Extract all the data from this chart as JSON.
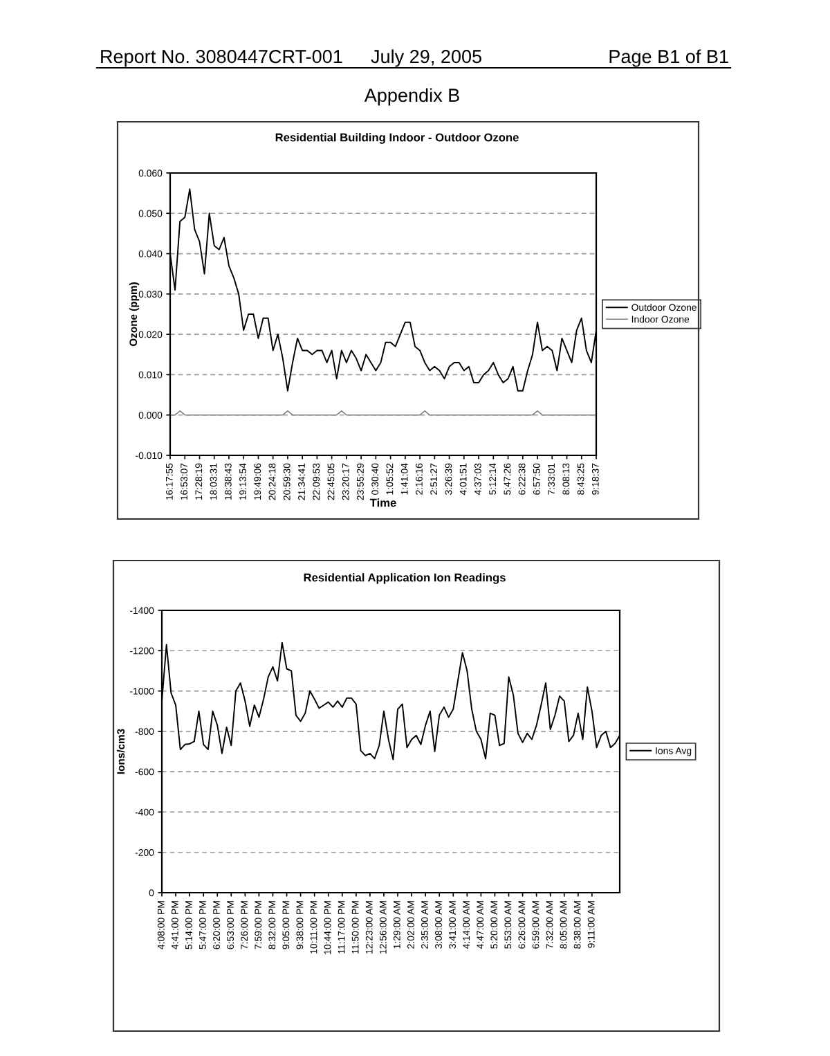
{
  "chart_data": [
    {
      "type": "line",
      "title": "Residential Building Indoor - Outdoor Ozone",
      "xlabel": "Time",
      "ylabel": "Ozone (ppm)",
      "annotations": [
        "Report No. 3080447CRT-001",
        "July 29, 2005",
        "Page B1 of B1",
        "Appendix B"
      ],
      "ylim": [
        -0.01,
        0.06
      ],
      "yticks": [
        {
          "value": 0.06,
          "label": "0.060"
        },
        {
          "value": 0.05,
          "label": "0.050"
        },
        {
          "value": 0.04,
          "label": "0.040"
        },
        {
          "value": 0.03,
          "label": "0.030"
        },
        {
          "value": 0.02,
          "label": "0.020"
        },
        {
          "value": 0.01,
          "label": "0.010"
        },
        {
          "value": 0,
          "label": "0.000"
        },
        {
          "value": -0.01,
          "label": "-0.010"
        }
      ],
      "categories": [
        "16:17:55",
        null,
        null,
        "16:53:07",
        null,
        null,
        "17:28:19",
        null,
        null,
        "18:03:31",
        null,
        null,
        "18:38:43",
        null,
        null,
        "19:13:54",
        null,
        null,
        "19:49:06",
        null,
        null,
        "20:24:18",
        null,
        null,
        "20:59:30",
        null,
        null,
        "21:34:41",
        null,
        null,
        "22:09:53",
        null,
        null,
        "22:45:05",
        null,
        null,
        "23:20:17",
        null,
        null,
        "23:55:29",
        null,
        null,
        "0:30:40",
        null,
        null,
        "1:05:52",
        null,
        null,
        "1:41:04",
        null,
        null,
        "2:16:16",
        null,
        null,
        "2:51:27",
        null,
        null,
        "3:26:39",
        null,
        null,
        "4:01:51",
        null,
        null,
        "4:37:03",
        null,
        null,
        "5:12:14",
        null,
        null,
        "5:47:26",
        null,
        null,
        "6:22:38",
        null,
        null,
        "6:57:50",
        null,
        null,
        "7:33:01",
        null,
        null,
        "8:08:13",
        null,
        null,
        "8:43:25",
        null,
        null,
        "9:18:37"
      ],
      "grid": "y",
      "legend": "right",
      "series": [
        {
          "name": "Outdoor Ozone",
          "color": "#000000",
          "values": [
            0.04,
            0.031,
            0.048,
            0.049,
            0.056,
            0.046,
            0.043,
            0.035,
            0.05,
            0.042,
            0.041,
            0.044,
            0.037,
            0.034,
            0.03,
            0.021,
            0.025,
            0.025,
            0.019,
            0.024,
            0.024,
            0.016,
            0.02,
            0.014,
            0.006,
            0.013,
            0.019,
            0.016,
            0.016,
            0.015,
            0.016,
            0.016,
            0.013,
            0.016,
            0.009,
            0.016,
            0.013,
            0.016,
            0.014,
            0.011,
            0.015,
            0.013,
            0.011,
            0.013,
            0.018,
            0.018,
            0.017,
            0.02,
            0.023,
            0.023,
            0.017,
            0.016,
            0.013,
            0.011,
            0.012,
            0.011,
            0.009,
            0.012,
            0.013,
            0.013,
            0.011,
            0.012,
            0.008,
            0.008,
            0.01,
            0.011,
            0.013,
            0.01,
            0.008,
            0.009,
            0.012,
            0.006,
            0.006,
            0.011,
            0.015,
            0.023,
            0.016,
            0.017,
            0.016,
            0.011,
            0.019,
            0.016,
            0.013,
            0.021,
            0.024,
            0.016,
            0.013,
            0.021
          ]
        },
        {
          "name": "Indoor Ozone",
          "color": "#808080",
          "values": [
            0,
            0,
            0.001,
            0,
            0,
            0,
            0,
            0,
            0,
            0,
            0,
            0,
            0,
            0,
            0,
            0,
            0,
            0,
            0,
            0,
            0,
            0,
            0,
            0,
            0.001,
            0,
            0,
            0,
            0,
            0,
            0,
            0,
            0,
            0,
            0,
            0.001,
            0,
            0,
            0,
            0,
            0,
            0,
            0,
            0,
            0,
            0,
            0,
            0,
            0,
            0,
            0,
            0,
            0.001,
            0,
            0,
            0,
            0,
            0,
            0,
            0,
            0,
            0,
            0,
            0,
            0,
            0,
            0,
            0,
            0,
            0,
            0,
            0,
            0,
            0,
            0,
            0.001,
            0,
            0,
            0,
            0,
            0,
            0,
            0,
            0,
            0,
            0,
            0,
            0
          ]
        }
      ]
    },
    {
      "type": "line",
      "title": "Residential Application Ion Readings",
      "ylabel": "Ions/cm3",
      "ylim": [
        0,
        -1400
      ],
      "yticks": [
        0,
        -200,
        -400,
        -600,
        -800,
        -1000,
        -1200,
        -1400
      ],
      "categories": [
        "4:08:00 PM",
        null,
        null,
        "4:41:00 PM",
        null,
        null,
        "5:14:00 PM",
        null,
        null,
        "5:47:00 PM",
        null,
        null,
        "6:20:00 PM",
        null,
        null,
        "6:53:00 PM",
        null,
        null,
        "7:26:00 PM",
        null,
        null,
        "7:59:00 PM",
        null,
        null,
        "8:32:00 PM",
        null,
        null,
        "9:05:00 PM",
        null,
        null,
        "9:38:00 PM",
        null,
        null,
        "10:11:00 PM",
        null,
        null,
        "10:44:00 PM",
        null,
        null,
        "11:17:00 PM",
        null,
        null,
        "11:50:00 PM",
        null,
        null,
        "12:23:00 AM",
        null,
        null,
        "12:56:00 AM",
        null,
        null,
        "1:29:00 AM",
        null,
        null,
        "2:02:00 AM",
        null,
        null,
        "2:35:00 AM",
        null,
        null,
        "3:08:00 AM",
        null,
        null,
        "3:41:00 AM",
        null,
        null,
        "4:14:00 AM",
        null,
        null,
        "4:47:00 AM",
        null,
        null,
        "5:20:00 AM",
        null,
        null,
        "5:53:00 AM",
        null,
        null,
        "6:26:00 AM",
        null,
        null,
        "6:59:00 AM",
        null,
        null,
        "7:32:00 AM",
        null,
        null,
        "8:05:00 AM",
        null,
        null,
        "8:38:00 AM",
        null,
        null,
        "9:11:00 AM",
        null,
        null,
        null,
        null,
        null,
        null
      ],
      "grid": "y",
      "legend": "right",
      "series": [
        {
          "name": "Ions Avg",
          "color": "#000000",
          "values": [
            -950,
            -1230,
            -990,
            -930,
            -710,
            -735,
            -738,
            -750,
            -900,
            -735,
            -710,
            -900,
            -830,
            -690,
            -820,
            -730,
            -1000,
            -1040,
            -950,
            -825,
            -930,
            -870,
            -960,
            -1070,
            -1120,
            -1050,
            -1240,
            -1110,
            -1100,
            -880,
            -850,
            -890,
            -1000,
            -960,
            -915,
            -930,
            -945,
            -920,
            -950,
            -920,
            -965,
            -965,
            -935,
            -705,
            -680,
            -690,
            -665,
            -730,
            -900,
            -760,
            -660,
            -910,
            -935,
            -720,
            -760,
            -780,
            -735,
            -830,
            -900,
            -700,
            -880,
            -920,
            -870,
            -910,
            -1050,
            -1190,
            -1100,
            -910,
            -800,
            -760,
            -664,
            -890,
            -880,
            -730,
            -740,
            -1070,
            -980,
            -790,
            -745,
            -790,
            -760,
            -830,
            -930,
            -1040,
            -810,
            -880,
            -975,
            -950,
            -750,
            -780,
            -890,
            -760,
            -1020,
            -900,
            -720,
            -780,
            -800,
            -720,
            -740,
            -780
          ]
        }
      ]
    }
  ]
}
